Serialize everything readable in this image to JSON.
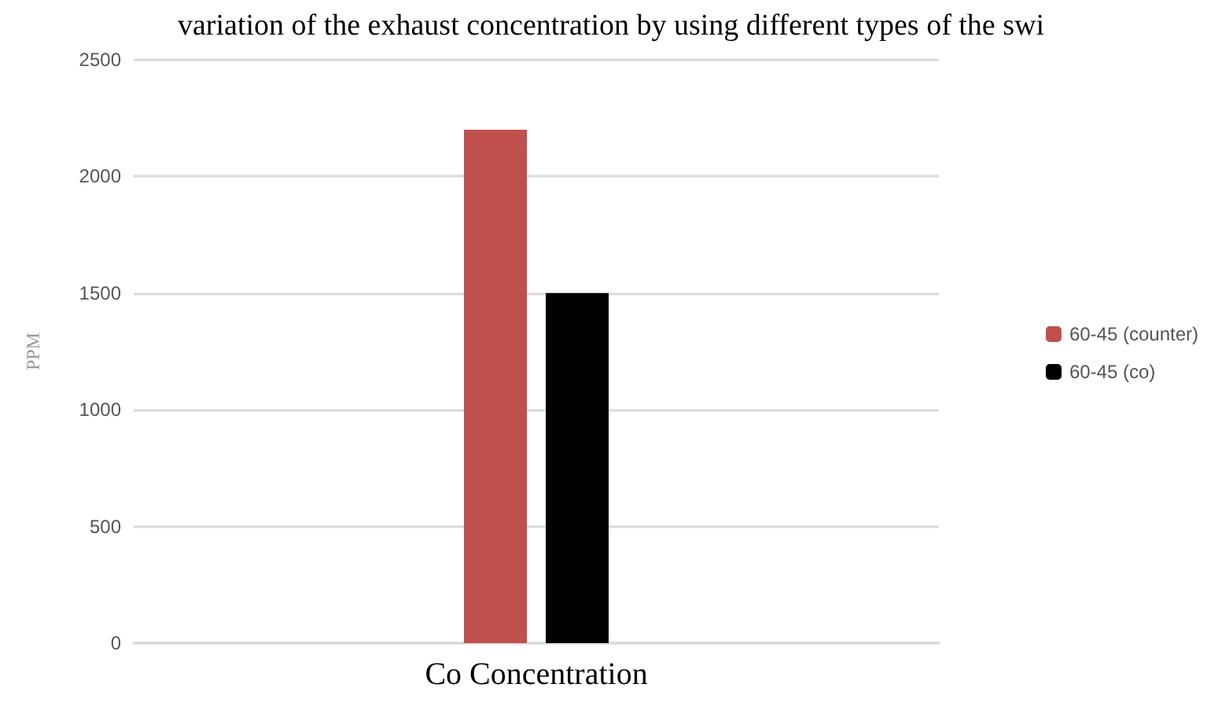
{
  "chart_data": {
    "type": "bar",
    "title": "variation of the exhaust concentration by using different types of the swi",
    "ylabel": "PPM",
    "categories": [
      "Co Concentration"
    ],
    "series": [
      {
        "name": "60-45 (counter)",
        "color": "#c0504d",
        "values": [
          2200
        ]
      },
      {
        "name": "60-45 (co)",
        "color": "#000000",
        "values": [
          1500
        ]
      }
    ],
    "ylim": [
      0,
      2500
    ],
    "yticks": [
      0,
      500,
      1000,
      1500,
      2000,
      2500
    ],
    "grid": "y",
    "legend": "right"
  }
}
